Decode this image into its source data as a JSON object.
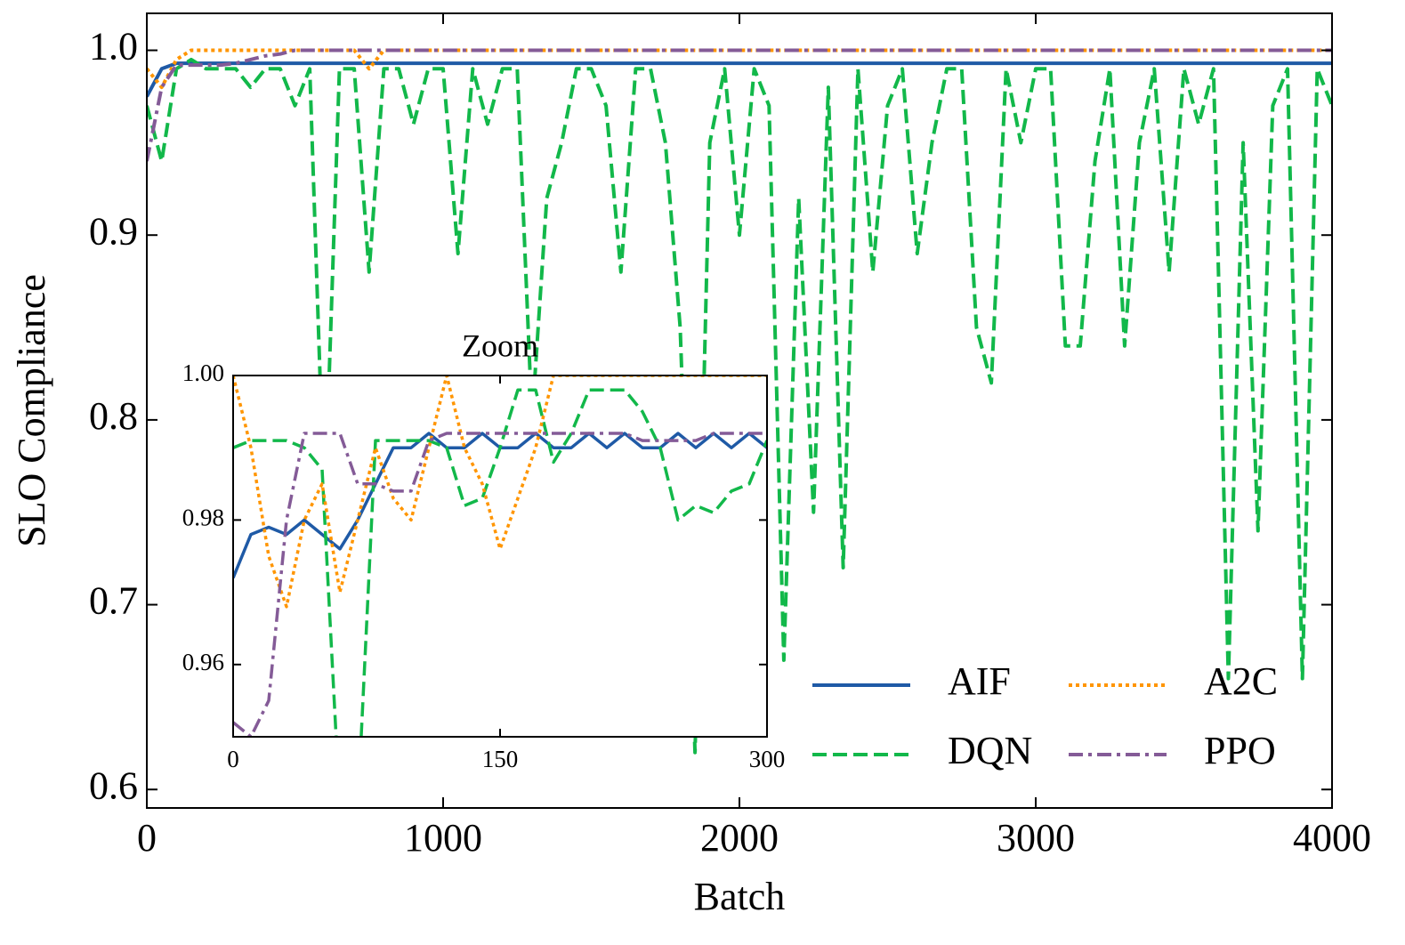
{
  "chart_data": [
    {
      "type": "line",
      "xlabel": "Batch",
      "ylabel": "SLO Compliance",
      "xlim": [
        0,
        4000
      ],
      "xticks": [
        0,
        1000,
        2000,
        3000,
        4000
      ],
      "ylim": [
        0.59,
        1.02
      ],
      "yticks": [
        0.6,
        0.7,
        0.8,
        0.9,
        {
          "value": 1,
          "label": "1.0"
        }
      ],
      "legend": "lower right",
      "legend_columns": 2,
      "x": [
        0,
        50,
        100,
        150,
        200,
        250,
        300,
        350,
        400,
        450,
        500,
        550,
        600,
        650,
        700,
        750,
        800,
        850,
        900,
        950,
        1000,
        1050,
        1100,
        1150,
        1200,
        1250,
        1300,
        1350,
        1400,
        1450,
        1500,
        1550,
        1600,
        1650,
        1700,
        1750,
        1800,
        1850,
        1900,
        1950,
        2000,
        2050,
        2100,
        2150,
        2200,
        2250,
        2300,
        2350,
        2400,
        2450,
        2500,
        2550,
        2600,
        2650,
        2700,
        2750,
        2800,
        2850,
        2900,
        2950,
        3000,
        3050,
        3100,
        3150,
        3200,
        3250,
        3300,
        3350,
        3400,
        3450,
        3500,
        3550,
        3600,
        3650,
        3700,
        3750,
        3800,
        3850,
        3900,
        3950,
        4000
      ],
      "series": [
        {
          "name": "AIF",
          "color": "#1f5aa6",
          "dash": "solid",
          "values": [
            0.975,
            0.99,
            0.993,
            0.993,
            0.993,
            0.993,
            0.993,
            0.993,
            0.993,
            0.993,
            0.993,
            0.993,
            0.993,
            0.993,
            0.993,
            0.993,
            0.993,
            0.993,
            0.993,
            0.993,
            0.993,
            0.993,
            0.993,
            0.993,
            0.993,
            0.993,
            0.993,
            0.993,
            0.993,
            0.993,
            0.993,
            0.993,
            0.993,
            0.993,
            0.993,
            0.993,
            0.993,
            0.993,
            0.993,
            0.993,
            0.993,
            0.993,
            0.993,
            0.993,
            0.993,
            0.993,
            0.993,
            0.993,
            0.993,
            0.993,
            0.993,
            0.993,
            0.993,
            0.993,
            0.993,
            0.993,
            0.993,
            0.993,
            0.993,
            0.993,
            0.993,
            0.993,
            0.993,
            0.993,
            0.993,
            0.993,
            0.993,
            0.993,
            0.993,
            0.993,
            0.993,
            0.993,
            0.993,
            0.993,
            0.993,
            0.993,
            0.993,
            0.993,
            0.993,
            0.993,
            0.993
          ]
        },
        {
          "name": "DQN",
          "color": "#12b84a",
          "dash": "dashed",
          "values": [
            0.97,
            0.94,
            0.99,
            0.995,
            0.99,
            0.99,
            0.99,
            0.98,
            0.99,
            0.99,
            0.97,
            0.99,
            0.75,
            0.99,
            0.99,
            0.88,
            0.99,
            0.99,
            0.96,
            0.99,
            0.99,
            0.89,
            0.99,
            0.96,
            0.99,
            0.99,
            0.8,
            0.92,
            0.95,
            0.99,
            0.99,
            0.97,
            0.88,
            0.99,
            0.99,
            0.95,
            0.85,
            0.62,
            0.95,
            0.99,
            0.9,
            0.99,
            0.97,
            0.67,
            0.92,
            0.75,
            0.98,
            0.72,
            0.99,
            0.88,
            0.97,
            0.99,
            0.89,
            0.95,
            0.99,
            0.99,
            0.85,
            0.82,
            0.99,
            0.95,
            0.99,
            0.99,
            0.84,
            0.84,
            0.94,
            0.99,
            0.84,
            0.95,
            0.99,
            0.88,
            0.99,
            0.96,
            0.99,
            0.66,
            0.95,
            0.74,
            0.97,
            0.99,
            0.66,
            0.99,
            0.97
          ]
        },
        {
          "name": "A2C",
          "color": "#ff9500",
          "dash": "dotted",
          "values": [
            0.99,
            0.98,
            0.995,
            1,
            1,
            1,
            1,
            1,
            1,
            1,
            1,
            1,
            1,
            1,
            1,
            0.99,
            1,
            1,
            1,
            1,
            1,
            1,
            1,
            1,
            1,
            1,
            1,
            1,
            1,
            1,
            1,
            1,
            1,
            1,
            1,
            1,
            1,
            1,
            1,
            1,
            1,
            1,
            1,
            1,
            1,
            1,
            1,
            1,
            1,
            1,
            1,
            1,
            1,
            1,
            1,
            1,
            1,
            1,
            1,
            1,
            1,
            1,
            1,
            1,
            1,
            1,
            1,
            1,
            1,
            1,
            1,
            1,
            1,
            1,
            1,
            1,
            1,
            1,
            1,
            1,
            1
          ]
        },
        {
          "name": "PPO",
          "color": "#845b97",
          "dash": "dashdot",
          "values": [
            0.94,
            0.98,
            0.992,
            0.992,
            0.992,
            0.992,
            0.993,
            0.995,
            0.997,
            0.998,
            1,
            1,
            1,
            1,
            1,
            1,
            1,
            1,
            1,
            1,
            1,
            1,
            1,
            1,
            1,
            1,
            1,
            1,
            1,
            1,
            1,
            1,
            1,
            1,
            1,
            1,
            1,
            1,
            1,
            1,
            1,
            1,
            1,
            1,
            1,
            1,
            1,
            1,
            1,
            1,
            1,
            1,
            1,
            1,
            1,
            1,
            1,
            1,
            1,
            1,
            1,
            1,
            1,
            1,
            1,
            1,
            1,
            1,
            1,
            1,
            1,
            1,
            1,
            1,
            1,
            1,
            1,
            1,
            1,
            1,
            1
          ]
        }
      ]
    },
    {
      "type": "line",
      "title": "Zoom",
      "xlim": [
        0,
        300
      ],
      "xticks": [
        0,
        150,
        300
      ],
      "ylim": [
        0.95,
        1.0
      ],
      "yticks": [
        0.96,
        0.98,
        {
          "value": 1,
          "label": "1.00"
        }
      ],
      "x": [
        0,
        10,
        20,
        30,
        40,
        50,
        60,
        70,
        80,
        90,
        100,
        110,
        120,
        130,
        140,
        150,
        160,
        170,
        180,
        190,
        200,
        210,
        220,
        230,
        240,
        250,
        260,
        270,
        280,
        290,
        300
      ],
      "series": [
        {
          "color": "#1f5aa6",
          "dash": "solid",
          "values": [
            0.972,
            0.978,
            0.979,
            0.978,
            0.98,
            0.978,
            0.976,
            0.98,
            0.985,
            0.99,
            0.99,
            0.992,
            0.99,
            0.99,
            0.992,
            0.99,
            0.99,
            0.992,
            0.99,
            0.99,
            0.992,
            0.99,
            0.992,
            0.99,
            0.99,
            0.992,
            0.99,
            0.992,
            0.99,
            0.992,
            0.99
          ]
        },
        {
          "color": "#12b84a",
          "dash": "dashed",
          "values": [
            0.99,
            0.991,
            0.991,
            0.991,
            0.99,
            0.987,
            0.94,
            0.94,
            0.991,
            0.991,
            0.991,
            0.991,
            0.99,
            0.982,
            0.983,
            0.99,
            0.998,
            0.998,
            0.988,
            0.992,
            0.998,
            0.998,
            0.998,
            0.995,
            0.99,
            0.98,
            0.982,
            0.981,
            0.984,
            0.985,
            0.991
          ]
        },
        {
          "color": "#ff9500",
          "dash": "dotted",
          "values": [
            1,
            0.99,
            0.975,
            0.968,
            0.98,
            0.985,
            0.97,
            0.98,
            0.99,
            0.983,
            0.98,
            0.99,
            1,
            0.99,
            0.985,
            0.976,
            0.983,
            0.99,
            1,
            1,
            1,
            1,
            1,
            1,
            1,
            1,
            1,
            1,
            1,
            1,
            1
          ]
        },
        {
          "color": "#845b97",
          "dash": "dashdot",
          "values": [
            0.952,
            0.95,
            0.955,
            0.98,
            0.992,
            0.992,
            0.992,
            0.985,
            0.985,
            0.984,
            0.984,
            0.991,
            0.992,
            0.992,
            0.992,
            0.992,
            0.992,
            0.992,
            0.992,
            0.992,
            0.992,
            0.992,
            0.992,
            0.991,
            0.991,
            0.991,
            0.991,
            0.992,
            0.992,
            0.992,
            0.992
          ]
        }
      ]
    }
  ]
}
